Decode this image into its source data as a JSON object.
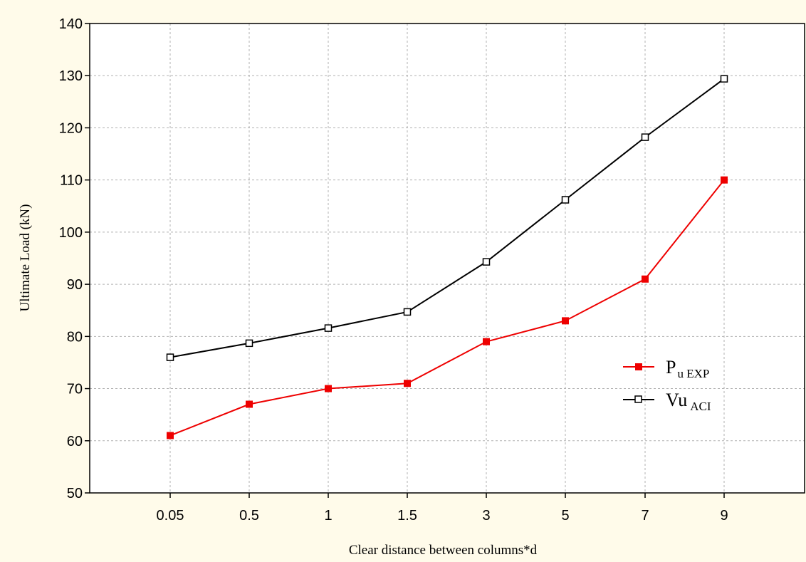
{
  "chart_data": {
    "type": "line",
    "xlabel": "Clear distance between columns*d",
    "ylabel": "Ultimate Load (kN)",
    "categories": [
      "0.05",
      "0.5",
      "1",
      "1.5",
      "3",
      "5",
      "7",
      "9"
    ],
    "ylim": [
      50,
      140
    ],
    "yticks": [
      50,
      60,
      70,
      80,
      90,
      100,
      110,
      120,
      130,
      140
    ],
    "grid": true,
    "legend_position": "right",
    "series": [
      {
        "name_main": "P",
        "name_sub": "u EXP",
        "color": "#ee0000",
        "marker": "filled-square",
        "values": [
          61,
          67,
          70,
          71,
          79,
          83,
          91,
          110
        ]
      },
      {
        "name_main": "Vu",
        "name_sub": "ACI",
        "color": "#000000",
        "marker": "open-square",
        "values": [
          76,
          78.7,
          81.6,
          84.7,
          94.3,
          106.2,
          118.2,
          129.4
        ]
      }
    ]
  }
}
